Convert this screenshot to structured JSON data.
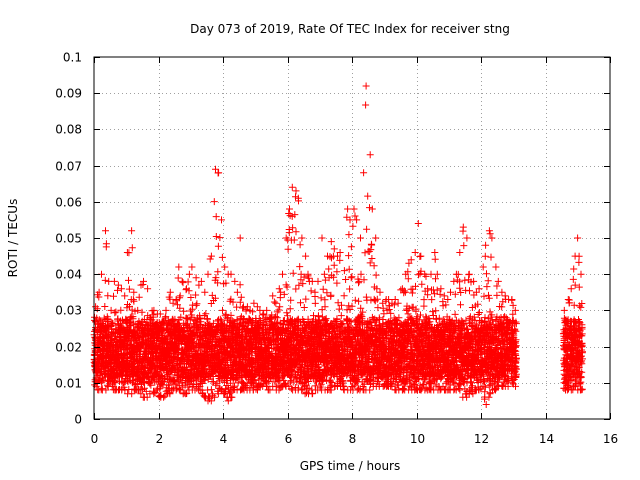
{
  "chart_data": {
    "type": "scatter",
    "title": "Day 073 of 2019, Rate Of TEC Index for receiver stng",
    "xlabel": "GPS time / hours",
    "ylabel": "ROTI / TECUs",
    "xlim": [
      0,
      16
    ],
    "ylim": [
      0,
      0.1
    ],
    "xticks": [
      0,
      2,
      4,
      6,
      8,
      10,
      12,
      14,
      16
    ],
    "xtick_labels": [
      "0",
      "2",
      "4",
      "6",
      "8",
      "10",
      "12",
      "14",
      "16"
    ],
    "yticks": [
      0,
      0.01,
      0.02,
      0.03,
      0.04,
      0.05,
      0.06,
      0.07,
      0.08,
      0.09,
      0.1
    ],
    "ytick_labels": [
      "0",
      "0.01",
      "0.02",
      "0.03",
      "0.04",
      "0.05",
      "0.06",
      "0.07",
      "0.08",
      "0.09",
      "0.1"
    ],
    "grid": true,
    "marker": "plus",
    "color": "#ff0000",
    "series": [
      {
        "name": "ROTI",
        "x": [
          0.05,
          0.15,
          0.25,
          0.35,
          0.45,
          0.55,
          0.65,
          0.75,
          0.85,
          0.95,
          1.05,
          1.15,
          1.25,
          1.35,
          1.45,
          1.55,
          1.65,
          1.75,
          1.85,
          1.95,
          2.05,
          2.15,
          2.25,
          2.35,
          2.45,
          2.55,
          2.65,
          2.75,
          2.85,
          2.95,
          3.05,
          3.15,
          3.25,
          3.35,
          3.45,
          3.55,
          3.65,
          3.75,
          3.85,
          3.95,
          4.05,
          4.15,
          4.25,
          4.35,
          4.45,
          4.55,
          4.65,
          4.75,
          4.85,
          4.95,
          5.05,
          5.15,
          5.25,
          5.35,
          5.45,
          5.55,
          5.65,
          5.75,
          5.85,
          5.95,
          6.05,
          6.15,
          6.25,
          6.35,
          6.45,
          6.55,
          6.65,
          6.75,
          6.85,
          6.95,
          7.05,
          7.15,
          7.25,
          7.35,
          7.45,
          7.55,
          7.65,
          7.75,
          7.85,
          7.95,
          8.05,
          8.15,
          8.25,
          8.35,
          8.45,
          8.55,
          8.65,
          8.75,
          8.85,
          8.95,
          9.05,
          9.15,
          9.25,
          9.35,
          9.45,
          9.55,
          9.65,
          9.75,
          9.85,
          9.95,
          10.05,
          10.15,
          10.25,
          10.35,
          10.45,
          10.55,
          10.65,
          10.75,
          10.85,
          10.95,
          11.05,
          11.15,
          11.25,
          11.35,
          11.45,
          11.55,
          11.65,
          11.75,
          11.85,
          11.95,
          12.05,
          12.15,
          12.25,
          12.35,
          12.45,
          12.55,
          12.65,
          12.75,
          12.85,
          12.95,
          13.05,
          14.6,
          14.7,
          14.8,
          14.9,
          15.0,
          15.1
        ],
        "y_max": [
          0.031,
          0.035,
          0.04,
          0.052,
          0.038,
          0.03,
          0.038,
          0.037,
          0.036,
          0.034,
          0.046,
          0.052,
          0.035,
          0.03,
          0.037,
          0.038,
          0.036,
          0.028,
          0.03,
          0.029,
          0.029,
          0.027,
          0.03,
          0.035,
          0.032,
          0.033,
          0.042,
          0.038,
          0.036,
          0.04,
          0.042,
          0.039,
          0.037,
          0.038,
          0.035,
          0.04,
          0.045,
          0.069,
          0.068,
          0.055,
          0.042,
          0.04,
          0.04,
          0.038,
          0.035,
          0.05,
          0.031,
          0.031,
          0.03,
          0.032,
          0.031,
          0.03,
          0.029,
          0.03,
          0.028,
          0.034,
          0.032,
          0.036,
          0.04,
          0.05,
          0.058,
          0.064,
          0.063,
          0.061,
          0.05,
          0.045,
          0.04,
          0.038,
          0.035,
          0.038,
          0.05,
          0.04,
          0.045,
          0.049,
          0.047,
          0.045,
          0.046,
          0.041,
          0.058,
          0.055,
          0.058,
          0.055,
          0.05,
          0.068,
          0.092,
          0.073,
          0.058,
          0.05,
          0.035,
          0.032,
          0.033,
          0.033,
          0.032,
          0.033,
          0.032,
          0.036,
          0.04,
          0.043,
          0.044,
          0.046,
          0.054,
          0.045,
          0.04,
          0.036,
          0.04,
          0.046,
          0.04,
          0.036,
          0.034,
          0.033,
          0.035,
          0.038,
          0.04,
          0.046,
          0.053,
          0.05,
          0.04,
          0.038,
          0.035,
          0.036,
          0.042,
          0.048,
          0.052,
          0.05,
          0.042,
          0.038,
          0.035,
          0.034,
          0.033,
          0.033,
          0.03,
          0.03,
          0.033,
          0.036,
          0.045,
          0.05,
          0.04
        ],
        "y_min": [
          0.009,
          0.008,
          0.008,
          0.008,
          0.009,
          0.009,
          0.008,
          0.008,
          0.008,
          0.008,
          0.007,
          0.007,
          0.008,
          0.008,
          0.007,
          0.006,
          0.006,
          0.007,
          0.007,
          0.008,
          0.006,
          0.006,
          0.007,
          0.007,
          0.008,
          0.008,
          0.008,
          0.007,
          0.007,
          0.008,
          0.008,
          0.008,
          0.008,
          0.007,
          0.006,
          0.005,
          0.005,
          0.006,
          0.007,
          0.008,
          0.007,
          0.005,
          0.006,
          0.008,
          0.008,
          0.008,
          0.008,
          0.008,
          0.008,
          0.008,
          0.008,
          0.009,
          0.009,
          0.009,
          0.008,
          0.009,
          0.008,
          0.008,
          0.009,
          0.009,
          0.009,
          0.008,
          0.008,
          0.008,
          0.008,
          0.007,
          0.007,
          0.007,
          0.008,
          0.008,
          0.008,
          0.008,
          0.008,
          0.008,
          0.009,
          0.009,
          0.009,
          0.008,
          0.008,
          0.008,
          0.008,
          0.008,
          0.008,
          0.008,
          0.008,
          0.008,
          0.009,
          0.009,
          0.009,
          0.009,
          0.009,
          0.009,
          0.009,
          0.008,
          0.008,
          0.008,
          0.008,
          0.008,
          0.008,
          0.008,
          0.008,
          0.008,
          0.008,
          0.008,
          0.008,
          0.008,
          0.008,
          0.008,
          0.008,
          0.008,
          0.008,
          0.008,
          0.008,
          0.008,
          0.006,
          0.006,
          0.007,
          0.007,
          0.008,
          0.008,
          0.009,
          0.004,
          0.006,
          0.008,
          0.008,
          0.009,
          0.009,
          0.009,
          0.009,
          0.01,
          0.009,
          0.008,
          0.008,
          0.008,
          0.009,
          0.008,
          0.008
        ]
      }
    ]
  }
}
